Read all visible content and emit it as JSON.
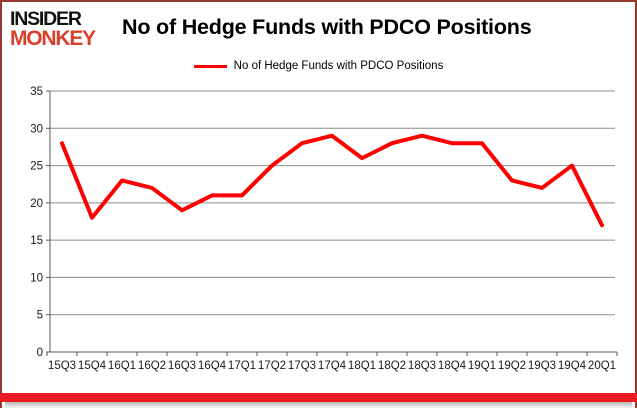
{
  "header": {
    "logo": {
      "line1": "INSIDER",
      "line2": "MONKEY"
    },
    "title": "No of Hedge Funds with PDCO Positions"
  },
  "legend": {
    "label": "No of Hedge Funds with PDCO Positions"
  },
  "colors": {
    "series_line": "#fe0000",
    "logo_red": "#d8402a",
    "grid": "#8c8c8c",
    "axis": "#595959",
    "frame_border": "#93392f",
    "bottom_bar": "#ea1b22",
    "text": "#1a1a1a"
  },
  "chart_data": {
    "type": "line",
    "title": "No of Hedge Funds with PDCO Positions",
    "legend_entries": [
      "No of Hedge Funds with PDCO Positions"
    ],
    "legend_position": "top",
    "grid": true,
    "categories": [
      "15Q3",
      "15Q4",
      "16Q1",
      "16Q2",
      "16Q3",
      "16Q4",
      "17Q1",
      "17Q2",
      "17Q3",
      "17Q4",
      "18Q1",
      "18Q2",
      "18Q3",
      "18Q4",
      "19Q1",
      "19Q2",
      "19Q3",
      "19Q4",
      "20Q1"
    ],
    "values": [
      28,
      18,
      23,
      22,
      19,
      21,
      21,
      25,
      28,
      29,
      26,
      28,
      29,
      28,
      28,
      23,
      22,
      25,
      17
    ],
    "xlabel": "",
    "ylabel": "",
    "ylim": [
      0,
      35
    ],
    "ytick_step": 5,
    "yticks": [
      0,
      5,
      10,
      15,
      20,
      25,
      30,
      35
    ],
    "line_color": "#fe0000"
  }
}
